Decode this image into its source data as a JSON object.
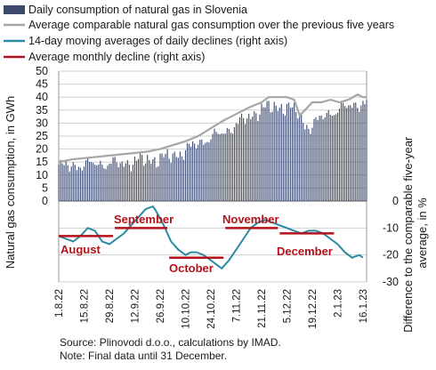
{
  "colors": {
    "bars": "#3d4a6e",
    "average": "#a6a6a6",
    "moving": "#2a8aa2",
    "monthly": "#b4121a",
    "grid": "#d0d0d0"
  },
  "chart_data": {
    "type": "bar",
    "legend": [
      {
        "name": "Daily consumption of natural gas in Slovenia",
        "marker": "bar"
      },
      {
        "name": "Average comparable natural gas consumption over the previous five years",
        "marker": "line-gray"
      },
      {
        "name": "14-day moving averages of daily declines (right axis)",
        "marker": "line-teal"
      },
      {
        "name": "Average monthly decline (right axis)",
        "marker": "line-red"
      }
    ],
    "ylabel_left": "Natural gas consumption, in GWh",
    "ylabel_right": "Difference to the comparable five-year average, in %",
    "yticks_left": [
      0,
      5,
      10,
      15,
      20,
      25,
      30,
      35,
      40,
      45,
      50
    ],
    "ylim_left": [
      0,
      50
    ],
    "yticks_right": [
      0,
      -10,
      -20,
      -30
    ],
    "ylim_right": [
      -30,
      0
    ],
    "xticks": [
      "1.8.22",
      "15.8.22",
      "29.8.22",
      "12.9.22",
      "26.9.22",
      "10.10.22",
      "24.10.22",
      "7.11.22",
      "21.11.22",
      "5.12.22",
      "19.12.22",
      "2.1.23",
      "16.1.23"
    ],
    "xtick_days": [
      0,
      14,
      28,
      42,
      56,
      70,
      84,
      98,
      112,
      126,
      140,
      154,
      168
    ],
    "daily_consumption_anchors": [
      [
        0,
        14
      ],
      [
        5,
        14
      ],
      [
        12,
        14.5
      ],
      [
        20,
        15
      ],
      [
        28,
        15
      ],
      [
        35,
        15
      ],
      [
        42,
        16
      ],
      [
        50,
        16.5
      ],
      [
        56,
        17
      ],
      [
        63,
        18
      ],
      [
        70,
        20
      ],
      [
        77,
        23
      ],
      [
        84,
        25
      ],
      [
        91,
        27
      ],
      [
        98,
        30
      ],
      [
        105,
        33
      ],
      [
        112,
        36
      ],
      [
        119,
        37
      ],
      [
        124,
        37
      ],
      [
        128,
        36
      ],
      [
        132,
        35
      ],
      [
        136,
        30
      ],
      [
        140,
        29
      ],
      [
        145,
        33
      ],
      [
        150,
        35
      ],
      [
        154,
        35
      ],
      [
        158,
        37
      ],
      [
        163,
        38
      ],
      [
        167,
        38
      ],
      [
        170,
        38
      ]
    ],
    "average_five_years": [
      [
        0,
        15
      ],
      [
        7,
        16
      ],
      [
        14,
        16.5
      ],
      [
        21,
        17
      ],
      [
        28,
        17.5
      ],
      [
        35,
        18
      ],
      [
        42,
        18.5
      ],
      [
        49,
        19
      ],
      [
        56,
        20
      ],
      [
        63,
        21.5
      ],
      [
        70,
        23
      ],
      [
        77,
        25
      ],
      [
        84,
        28
      ],
      [
        91,
        31
      ],
      [
        98,
        33.5
      ],
      [
        105,
        36
      ],
      [
        112,
        38
      ],
      [
        116,
        40
      ],
      [
        120,
        40
      ],
      [
        126,
        40
      ],
      [
        130,
        39
      ],
      [
        133,
        33
      ],
      [
        136,
        35
      ],
      [
        140,
        38
      ],
      [
        145,
        38
      ],
      [
        150,
        39
      ],
      [
        155,
        38
      ],
      [
        160,
        39
      ],
      [
        165,
        41
      ],
      [
        168,
        40
      ],
      [
        170,
        40
      ]
    ],
    "moving_average_decline": [
      [
        0,
        -13
      ],
      [
        4,
        -14
      ],
      [
        8,
        -15
      ],
      [
        12,
        -13
      ],
      [
        16,
        -10
      ],
      [
        20,
        -11
      ],
      [
        24,
        -15
      ],
      [
        28,
        -16
      ],
      [
        32,
        -14
      ],
      [
        36,
        -12
      ],
      [
        40,
        -9
      ],
      [
        44,
        -6
      ],
      [
        48,
        -3
      ],
      [
        52,
        -2
      ],
      [
        54,
        -4
      ],
      [
        58,
        -9
      ],
      [
        62,
        -15
      ],
      [
        66,
        -18
      ],
      [
        70,
        -20
      ],
      [
        73,
        -19
      ],
      [
        76,
        -19
      ],
      [
        80,
        -20
      ],
      [
        84,
        -22
      ],
      [
        88,
        -24
      ],
      [
        90,
        -25
      ],
      [
        94,
        -22
      ],
      [
        98,
        -18
      ],
      [
        102,
        -14
      ],
      [
        106,
        -10
      ],
      [
        110,
        -8
      ],
      [
        114,
        -7
      ],
      [
        118,
        -8
      ],
      [
        122,
        -9
      ],
      [
        126,
        -10
      ],
      [
        130,
        -11
      ],
      [
        134,
        -12
      ],
      [
        138,
        -11
      ],
      [
        142,
        -11
      ],
      [
        146,
        -12
      ],
      [
        150,
        -14
      ],
      [
        154,
        -16
      ],
      [
        158,
        -19
      ],
      [
        162,
        -21
      ],
      [
        166,
        -20
      ],
      [
        168,
        -21
      ]
    ],
    "monthly_decline": [
      {
        "label": "August",
        "start": 0,
        "end": 30,
        "value": -13
      },
      {
        "label": "September",
        "start": 31,
        "end": 60,
        "value": -10
      },
      {
        "label": "October",
        "start": 61,
        "end": 91,
        "value": -21
      },
      {
        "label": "November",
        "start": 92,
        "end": 121,
        "value": -10
      },
      {
        "label": "December",
        "start": 122,
        "end": 152,
        "value": -12
      }
    ]
  },
  "source_text": "Source: Plinovodi d.o.o., calculations by IMAD.",
  "note_text": "Note: Final data until 31 December."
}
